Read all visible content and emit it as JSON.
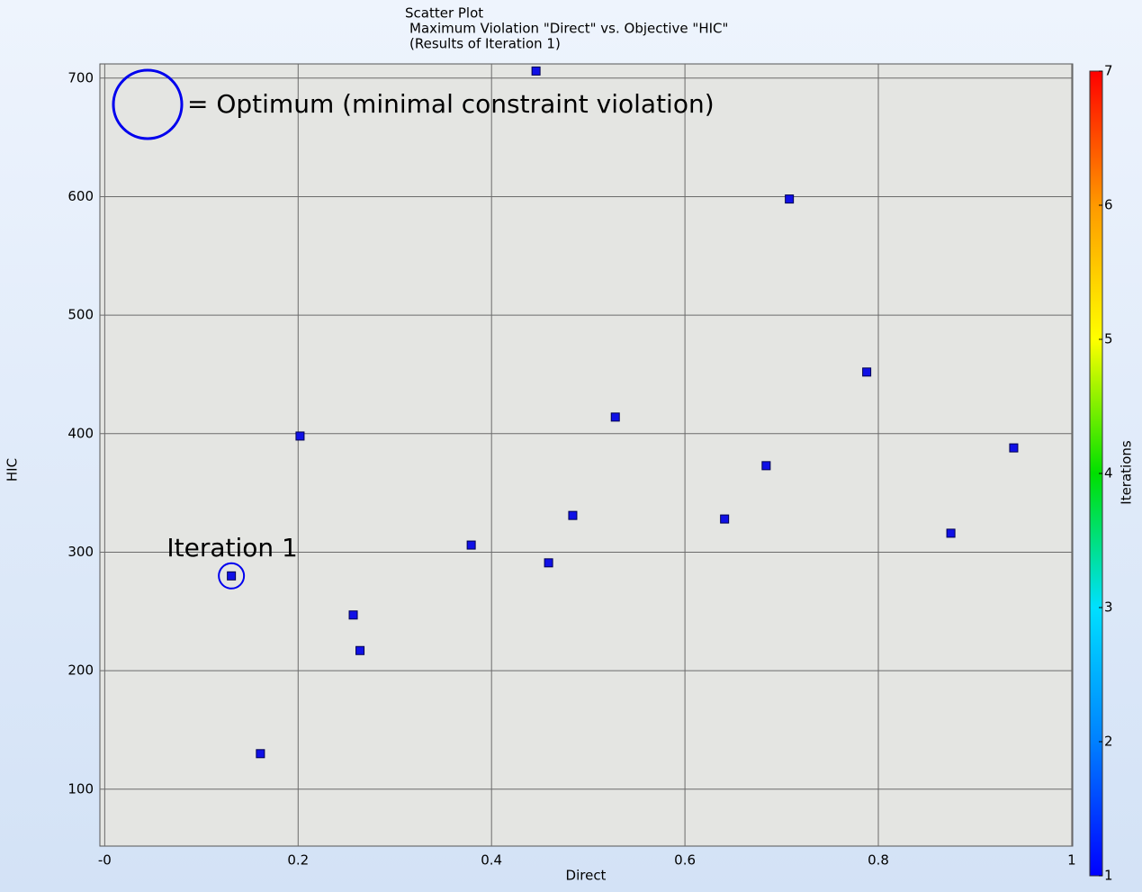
{
  "chart_data": {
    "type": "scatter",
    "title": [
      "Scatter Plot",
      "Maximum Violation \"Direct\" vs. Objective \"HIC\"",
      "(Results of Iteration 1)"
    ],
    "x_label": "Direct",
    "y_label": "HIC",
    "x": [
      0.131,
      0.161,
      0.202,
      0.257,
      0.264,
      0.379,
      0.446,
      0.459,
      0.484,
      0.528,
      0.641,
      0.684,
      0.708,
      0.788,
      0.875,
      0.94
    ],
    "y": [
      280,
      130,
      398,
      247,
      217,
      306,
      706,
      291,
      331,
      414,
      328,
      373,
      598,
      452,
      316,
      388
    ],
    "color": "#1010e6",
    "xlim": [
      -0.005,
      1.001
    ],
    "ylim": [
      52,
      712
    ],
    "xticks": [
      {
        "value": 0,
        "label": "-0"
      },
      0.2,
      0.4,
      0.6,
      0.8,
      1
    ],
    "yticks": [
      100,
      200,
      300,
      400,
      500,
      600,
      700
    ],
    "grid": true,
    "legend": "= Optimum (minimal constraint violation)",
    "annotation": "Iteration 1",
    "colorbar": {
      "label": "Iterations",
      "lim": [
        1,
        7
      ],
      "ticks": [
        1,
        2,
        3,
        4,
        5,
        6,
        7
      ],
      "colors": [
        "#0000ff",
        "#0080ff",
        "#00e0ff",
        "#00e000",
        "#ffff00",
        "#ff9900",
        "#ff0000"
      ]
    }
  }
}
